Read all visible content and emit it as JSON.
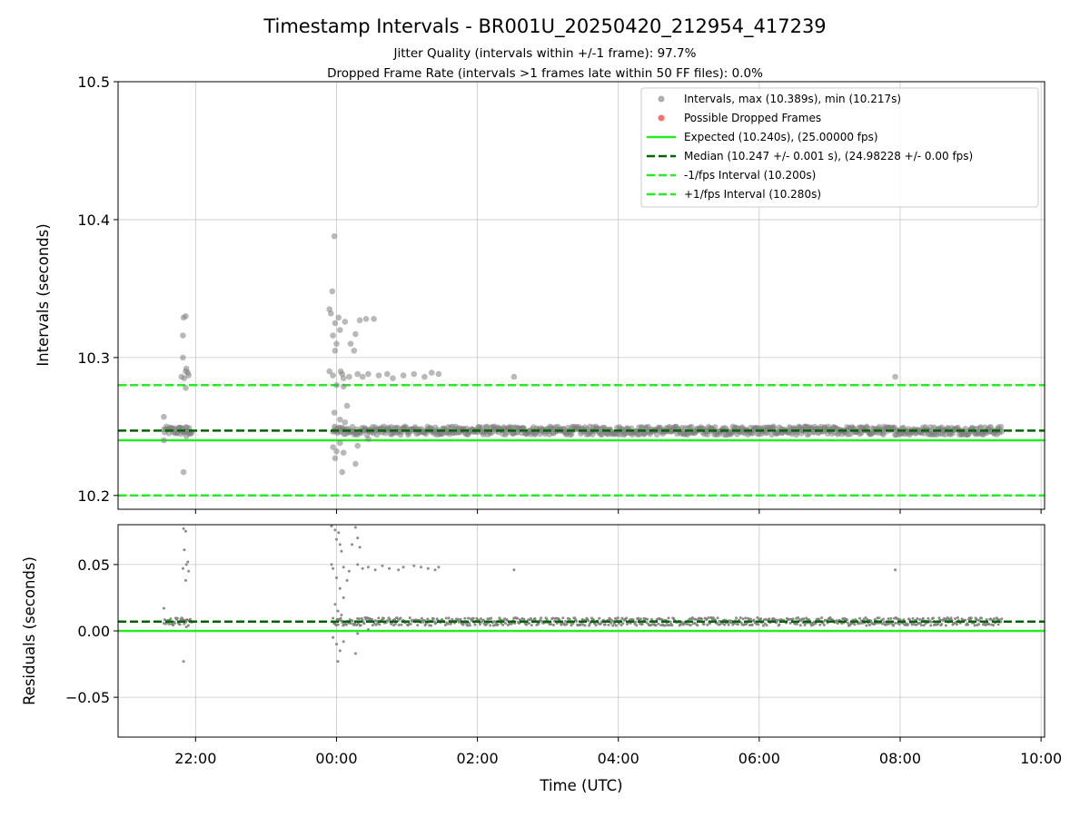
{
  "chart_data": {
    "type": "scatter",
    "title": "Timestamp Intervals - BR001U_20250420_212954_417239",
    "subtitle_lines": [
      "Jitter Quality (intervals within +/-1 frame): 97.7%",
      "Dropped Frame Rate (intervals >1 frames late within 50 FF files): 0.0%"
    ],
    "xlabel": "Time (UTC)",
    "x_ticks": [
      "22:00",
      "00:00",
      "02:00",
      "04:00",
      "06:00",
      "08:00",
      "10:00"
    ],
    "x_range_hours": [
      20.9,
      34.05
    ],
    "grid": true,
    "colors": {
      "points": "#7f7f7f",
      "dropped": "#ff3030",
      "expected": "#22ee22",
      "median": "#006400",
      "interval_bounds": "#22ee22"
    },
    "top": {
      "ylabel": "Intervals (seconds)",
      "y_ticks": [
        "10.2",
        "10.3",
        "10.4",
        "10.5"
      ],
      "y_range": [
        10.19,
        10.5
      ],
      "legend_position": "top-right",
      "legend": [
        {
          "label": "Intervals, max (10.389s), min (10.217s)",
          "marker": "point-gray"
        },
        {
          "label": "Possible Dropped Frames",
          "marker": "point-red"
        },
        {
          "label": "Expected (10.240s), (25.00000 fps)",
          "marker": "solid-green"
        },
        {
          "label": "Median (10.247 +/- 0.001 s), (24.98228 +/- 0.00 fps)",
          "marker": "dashed-darkgreen"
        },
        {
          "label": "-1/fps Interval (10.200s)",
          "marker": "dashed-green"
        },
        {
          "label": "+1/fps Interval (10.280s)",
          "marker": "dashed-green"
        }
      ],
      "expected": 10.24,
      "median": 10.247,
      "minus_interval": 10.2,
      "plus_interval": 10.28,
      "series_band": {
        "x_start": 21.55,
        "x_end": 33.45,
        "y_center": 10.247,
        "y_spread": 0.003
      },
      "outliers": [
        [
          21.55,
          10.257
        ],
        [
          21.55,
          10.24
        ],
        [
          21.83,
          10.329
        ],
        [
          21.86,
          10.33
        ],
        [
          21.82,
          10.316
        ],
        [
          21.82,
          10.3
        ],
        [
          21.8,
          10.286
        ],
        [
          21.86,
          10.29
        ],
        [
          21.87,
          10.292
        ],
        [
          21.89,
          10.289
        ],
        [
          21.84,
          10.285
        ],
        [
          21.86,
          10.278
        ],
        [
          21.9,
          10.287
        ],
        [
          21.87,
          10.243
        ],
        [
          21.83,
          10.217
        ],
        [
          21.9,
          10.245
        ],
        [
          21.8,
          10.249
        ],
        [
          23.9,
          10.335
        ],
        [
          23.92,
          10.332
        ],
        [
          23.94,
          10.348
        ],
        [
          23.97,
          10.388
        ],
        [
          23.95,
          10.316
        ],
        [
          23.98,
          10.325
        ],
        [
          24.03,
          10.329
        ],
        [
          23.98,
          10.305
        ],
        [
          24.0,
          10.31
        ],
        [
          24.05,
          10.32
        ],
        [
          24.06,
          10.29
        ],
        [
          24.08,
          10.288
        ],
        [
          24.12,
          10.326
        ],
        [
          24.2,
          10.31
        ],
        [
          24.25,
          10.305
        ],
        [
          24.27,
          10.317
        ],
        [
          24.33,
          10.327
        ],
        [
          24.42,
          10.328
        ],
        [
          24.53,
          10.328
        ],
        [
          23.9,
          10.29
        ],
        [
          23.95,
          10.287
        ],
        [
          24.1,
          10.285
        ],
        [
          24.18,
          10.286
        ],
        [
          24.3,
          10.288
        ],
        [
          24.37,
          10.286
        ],
        [
          24.45,
          10.288
        ],
        [
          24.6,
          10.287
        ],
        [
          24.72,
          10.288
        ],
        [
          24.8,
          10.285
        ],
        [
          24.95,
          10.287
        ],
        [
          25.1,
          10.288
        ],
        [
          25.25,
          10.286
        ],
        [
          25.35,
          10.289
        ],
        [
          25.45,
          10.288
        ],
        [
          26.52,
          10.286
        ],
        [
          31.93,
          10.286
        ],
        [
          24.0,
          10.28
        ],
        [
          24.1,
          10.279
        ],
        [
          24.15,
          10.265
        ],
        [
          23.97,
          10.26
        ],
        [
          24.05,
          10.255
        ],
        [
          24.12,
          10.253
        ],
        [
          23.95,
          10.235
        ],
        [
          24.0,
          10.232
        ],
        [
          24.05,
          10.238
        ],
        [
          24.1,
          10.231
        ],
        [
          23.98,
          10.227
        ],
        [
          24.08,
          10.217
        ],
        [
          24.27,
          10.223
        ],
        [
          24.3,
          10.236
        ],
        [
          24.45,
          10.241
        ]
      ]
    },
    "bottom": {
      "ylabel": "Residuals (seconds)",
      "y_ticks": [
        "−0.05",
        "0.00",
        "0.05"
      ],
      "y_range": [
        -0.08,
        0.08
      ],
      "expected": 0.0,
      "median": 0.007,
      "series_band": {
        "x_start": 21.55,
        "x_end": 33.45,
        "y_center": 0.007,
        "y_spread": 0.003
      },
      "outliers": [
        [
          21.55,
          0.017
        ],
        [
          21.83,
          0.077
        ],
        [
          21.86,
          0.075
        ],
        [
          21.84,
          0.061
        ],
        [
          21.82,
          0.047
        ],
        [
          21.87,
          0.05
        ],
        [
          21.89,
          0.052
        ],
        [
          21.86,
          0.038
        ],
        [
          21.9,
          0.045
        ],
        [
          21.83,
          -0.023
        ],
        [
          21.87,
          0.003
        ],
        [
          23.93,
          0.079
        ],
        [
          23.98,
          0.076
        ],
        [
          24.03,
          0.074
        ],
        [
          24.0,
          0.069
        ],
        [
          24.05,
          0.065
        ],
        [
          24.07,
          0.06
        ],
        [
          24.22,
          0.065
        ],
        [
          24.27,
          0.078
        ],
        [
          24.3,
          0.07
        ],
        [
          24.33,
          0.063
        ],
        [
          23.93,
          0.05
        ],
        [
          23.95,
          0.047
        ],
        [
          24.1,
          0.048
        ],
        [
          24.18,
          0.045
        ],
        [
          24.3,
          0.05
        ],
        [
          24.37,
          0.047
        ],
        [
          24.45,
          0.048
        ],
        [
          24.55,
          0.046
        ],
        [
          24.65,
          0.049
        ],
        [
          24.75,
          0.047
        ],
        [
          24.88,
          0.046
        ],
        [
          24.95,
          0.048
        ],
        [
          25.1,
          0.049
        ],
        [
          25.2,
          0.048
        ],
        [
          25.3,
          0.047
        ],
        [
          25.4,
          0.046
        ],
        [
          25.45,
          0.048
        ],
        [
          26.52,
          0.046
        ],
        [
          31.93,
          0.046
        ],
        [
          24.0,
          0.04
        ],
        [
          24.15,
          0.038
        ],
        [
          24.05,
          0.032
        ],
        [
          24.1,
          0.025
        ],
        [
          23.98,
          0.02
        ],
        [
          24.02,
          0.015
        ],
        [
          24.07,
          0.012
        ],
        [
          23.95,
          -0.005
        ],
        [
          24.0,
          -0.01
        ],
        [
          24.05,
          -0.015
        ],
        [
          24.1,
          -0.008
        ],
        [
          24.02,
          -0.023
        ],
        [
          24.27,
          -0.017
        ],
        [
          24.3,
          -0.002
        ],
        [
          24.45,
          0.001
        ]
      ]
    }
  }
}
